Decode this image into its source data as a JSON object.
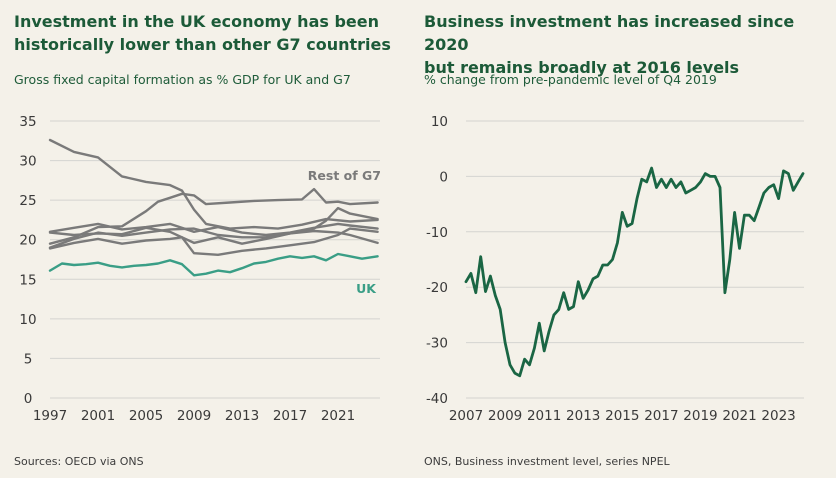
{
  "left": {
    "title_line1": "Investment in the UK economy has been",
    "title_line2": "historically lower than other G7 countries",
    "subtitle": "Gross fixed capital formation as % GDP for UK and G7",
    "source": "Sources: OECD via ONS"
  },
  "right": {
    "title_line1": "Business investment has increased since 2020",
    "title_line2": "but remains broadly at 2016 levels",
    "subtitle": "% change from pre-pandemic level of Q4 2019",
    "source": "ONS, Business investment level, series NPEL"
  },
  "colors": {
    "background": "#f4f1e9",
    "uk": "#3a9e86",
    "g7": "#7a7a7a",
    "business": "#1a6644",
    "grid": "#d4d4d0"
  },
  "chart_data": [
    {
      "type": "line",
      "title": "Investment in the UK economy has been historically lower than other G7 countries",
      "subtitle": "Gross fixed capital formation as % GDP for UK and G7",
      "x_tick_labels": [
        "1997",
        "2001",
        "2005",
        "2009",
        "2013",
        "2017",
        "2021"
      ],
      "y_ticks": [
        0,
        5,
        10,
        15,
        20,
        25,
        30,
        35
      ],
      "ylim": [
        0,
        35
      ],
      "xlim": [
        1997,
        2024.5
      ],
      "grid": true,
      "annotations": [
        "Rest of G7",
        "UK"
      ],
      "series": [
        {
          "name": "UK",
          "x": [
            1997,
            1998,
            1999,
            2000,
            2001,
            2002,
            2003,
            2004,
            2005,
            2006,
            2007,
            2008,
            2009,
            2010,
            2011,
            2012,
            2013,
            2014,
            2015,
            2016,
            2017,
            2018,
            2019,
            2020,
            2021,
            2022,
            2023,
            2024.3
          ],
          "values": [
            16.1,
            17.0,
            16.8,
            16.9,
            17.1,
            16.7,
            16.5,
            16.7,
            16.8,
            17.0,
            17.4,
            16.9,
            15.5,
            15.7,
            16.1,
            15.9,
            16.4,
            17.0,
            17.2,
            17.6,
            17.9,
            17.7,
            17.9,
            17.4,
            18.2,
            17.9,
            17.6,
            17.9
          ]
        },
        {
          "name": "",
          "x": [
            1997,
            1999,
            2001,
            2003,
            2005,
            2007,
            2008,
            2009,
            2010,
            2012,
            2014,
            2016,
            2018,
            2020,
            2022,
            2024.3
          ],
          "values": [
            32.6,
            31.1,
            30.4,
            28.0,
            27.3,
            26.9,
            26.2,
            23.8,
            22.0,
            21.4,
            21.6,
            21.4,
            21.9,
            22.6,
            22.3,
            22.5
          ]
        },
        {
          "name": "",
          "x": [
            1997,
            1999,
            2001,
            2003,
            2005,
            2006,
            2007,
            2008,
            2009,
            2010,
            2012,
            2014,
            2016,
            2018,
            2019,
            2020,
            2021,
            2022,
            2024.3
          ],
          "values": [
            19.5,
            20.3,
            21.6,
            21.7,
            23.6,
            24.8,
            25.3,
            25.8,
            25.6,
            24.5,
            24.7,
            24.9,
            25.0,
            25.1,
            26.4,
            24.7,
            24.8,
            24.5,
            24.7
          ]
        },
        {
          "name": "",
          "x": [
            1997,
            1999,
            2001,
            2003,
            2005,
            2007,
            2009,
            2011,
            2013,
            2015,
            2017,
            2019,
            2020,
            2021,
            2022,
            2024.3
          ],
          "values": [
            19.0,
            20.1,
            20.9,
            20.5,
            20.9,
            21.3,
            21.4,
            20.6,
            20.3,
            20.3,
            20.8,
            21.4,
            22.4,
            24.0,
            23.3,
            22.6
          ]
        },
        {
          "name": "",
          "x": [
            1997,
            1999,
            2001,
            2003,
            2005,
            2007,
            2009,
            2011,
            2013,
            2015,
            2017,
            2019,
            2021,
            2022,
            2024.3
          ],
          "values": [
            21.0,
            21.5,
            22.0,
            21.3,
            21.6,
            22.0,
            21.0,
            21.6,
            20.9,
            20.6,
            20.9,
            21.5,
            22.0,
            21.8,
            21.4
          ]
        },
        {
          "name": "",
          "x": [
            1997,
            1999,
            2001,
            2003,
            2005,
            2007,
            2008,
            2009,
            2011,
            2013,
            2015,
            2017,
            2019,
            2021,
            2022,
            2024.3
          ],
          "values": [
            18.9,
            19.6,
            20.1,
            19.5,
            19.9,
            20.1,
            20.3,
            18.3,
            18.1,
            18.6,
            18.9,
            19.3,
            19.7,
            20.6,
            21.4,
            21.0
          ]
        },
        {
          "name": "",
          "x": [
            1997,
            1999,
            2001,
            2003,
            2005,
            2007,
            2009,
            2011,
            2013,
            2015,
            2017,
            2019,
            2021,
            2022,
            2024.3
          ],
          "values": [
            20.9,
            20.6,
            20.8,
            20.7,
            21.5,
            21.0,
            19.6,
            20.3,
            19.5,
            20.1,
            20.8,
            21.1,
            20.9,
            20.6,
            19.6
          ]
        }
      ]
    },
    {
      "type": "line",
      "title": "Business investment has increased since 2020 but remains broadly at 2016 levels",
      "subtitle": "% change from pre-pandemic level of Q4 2019",
      "x_tick_labels": [
        "2007",
        "2009",
        "2011",
        "2013",
        "2015",
        "2017",
        "2019",
        "2021",
        "2023"
      ],
      "y_ticks": [
        -40,
        -30,
        -20,
        -10,
        0,
        10
      ],
      "ylim": [
        -40,
        10
      ],
      "xlim": [
        2007,
        2024.3
      ],
      "grid": true,
      "series": [
        {
          "name": "",
          "x": [
            2007.0,
            2007.25,
            2007.5,
            2007.75,
            2008.0,
            2008.25,
            2008.5,
            2008.75,
            2009.0,
            2009.25,
            2009.5,
            2009.75,
            2010.0,
            2010.25,
            2010.5,
            2010.75,
            2011.0,
            2011.25,
            2011.5,
            2011.75,
            2012.0,
            2012.25,
            2012.5,
            2012.75,
            2013.0,
            2013.25,
            2013.5,
            2013.75,
            2014.0,
            2014.25,
            2014.5,
            2014.75,
            2015.0,
            2015.25,
            2015.5,
            2015.75,
            2016.0,
            2016.25,
            2016.5,
            2016.75,
            2017.0,
            2017.25,
            2017.5,
            2017.75,
            2018.0,
            2018.25,
            2018.5,
            2018.75,
            2019.0,
            2019.25,
            2019.5,
            2019.75,
            2020.0,
            2020.25,
            2020.5,
            2020.75,
            2021.0,
            2021.25,
            2021.5,
            2021.75,
            2022.0,
            2022.25,
            2022.5,
            2022.75,
            2023.0,
            2023.25,
            2023.5,
            2023.75,
            2024.0,
            2024.25
          ],
          "values": [
            -19,
            -17.5,
            -21,
            -14.5,
            -20.8,
            -18,
            -21.5,
            -24,
            -30,
            -34,
            -35.5,
            -36,
            -33,
            -34,
            -31,
            -26.5,
            -31.5,
            -28,
            -25,
            -24,
            -21,
            -24,
            -23.5,
            -19,
            -22,
            -20.5,
            -18.5,
            -18,
            -16,
            -16,
            -15,
            -12,
            -6.5,
            -9,
            -8.5,
            -4,
            -0.5,
            -1,
            1.5,
            -2,
            -0.5,
            -2,
            -0.5,
            -2,
            -1,
            -3,
            -2.5,
            -2,
            -1,
            0.5,
            0,
            0,
            -2,
            -21,
            -15,
            -6.5,
            -13,
            -7,
            -7,
            -8,
            -5.5,
            -3,
            -2,
            -1.5,
            -4,
            1,
            0.5,
            -2.5,
            -1,
            0.5
          ]
        }
      ]
    }
  ]
}
